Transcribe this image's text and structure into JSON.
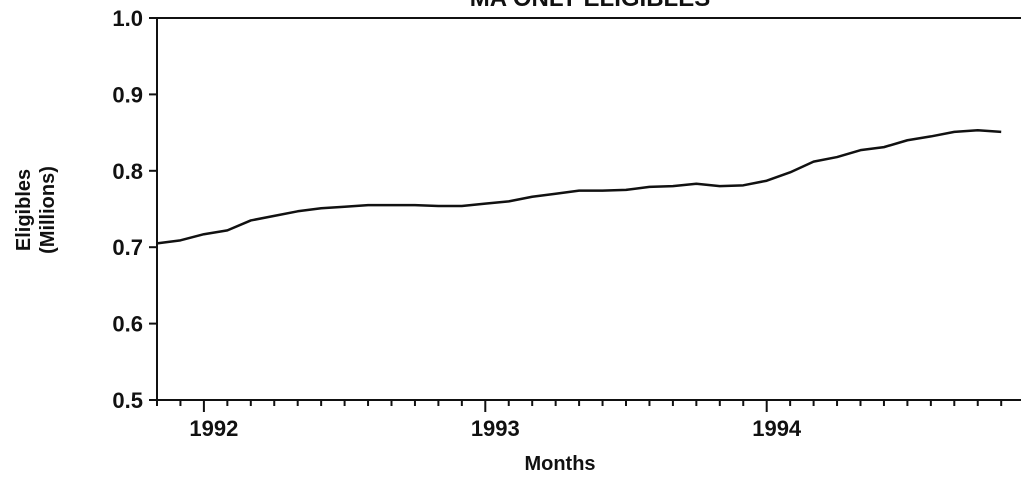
{
  "chart_data": {
    "type": "line",
    "title": "MA ONLY ELIGIBLES",
    "xlabel": "Months",
    "ylabel": [
      "Eligibles",
      "(Millions)"
    ],
    "categories": [
      null,
      null,
      "1992",
      null,
      null,
      null,
      null,
      null,
      null,
      null,
      null,
      null,
      null,
      null,
      "1993",
      null,
      null,
      null,
      null,
      null,
      null,
      null,
      null,
      null,
      null,
      null,
      "1994",
      null,
      null,
      null,
      null,
      null,
      null,
      null,
      null,
      null,
      null
    ],
    "series": [
      {
        "name": "MA only eligibles",
        "color": "#111111",
        "values": [
          0.705,
          0.709,
          0.717,
          0.722,
          0.735,
          0.741,
          0.747,
          0.751,
          0.753,
          0.755,
          0.755,
          0.755,
          0.754,
          0.754,
          0.757,
          0.76,
          0.766,
          0.77,
          0.774,
          0.774,
          0.775,
          0.779,
          0.78,
          0.783,
          0.78,
          0.781,
          0.787,
          0.798,
          0.812,
          0.818,
          0.827,
          0.831,
          0.84,
          0.845,
          0.851,
          0.853,
          0.851
        ]
      }
    ],
    "ylim": [
      0.5,
      1.0
    ],
    "yticks": [
      0.5,
      0.6,
      0.7,
      0.8,
      0.9,
      {
        "value": 1,
        "label": "1.0"
      }
    ]
  }
}
